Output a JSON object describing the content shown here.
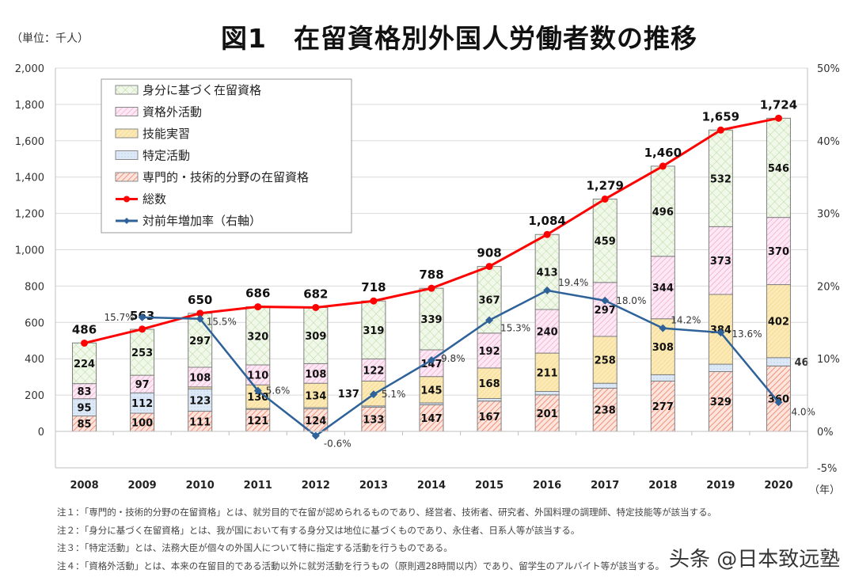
{
  "title": "図1　在留資格別外国人労働者数の推移",
  "unit_label": "（単位：千人）",
  "year_unit": "（年）",
  "notes": [
    "注１：「専門的・技術的分野の在留資格」とは、就労目的で在留が認められるものであり、経営者、技術者、研究者、外国料理の調理師、特定技能等が該当する。",
    "注２：「身分に基づく在留資格」とは、我が国において有する身分又は地位に基づくものであり、永住者、日系人等が該当する。",
    "注３：「特定活動」とは、法務大臣が個々の外国人について特に指定する活動を行うものである。",
    "注４：「資格外活動」とは、本来の在留目的である活動以外に就労活動を行うもの（原則週28時間以内）であり、留学生のアルバイト等が該当する。"
  ],
  "watermark": "头条 @日本致远塾",
  "chart_data": {
    "type": "bar",
    "stacked": true,
    "title": "図1　在留資格別外国人労働者数の推移",
    "ylabel": "（単位：千人）",
    "xlabel": "（年）",
    "categories": [
      "2008",
      "2009",
      "2010",
      "2011",
      "2012",
      "2013",
      "2014",
      "2015",
      "2016",
      "2017",
      "2018",
      "2019",
      "2020"
    ],
    "ylim": [
      0,
      2000
    ],
    "yticks": [
      "0",
      "200",
      "400",
      "600",
      "800",
      "1,000",
      "1,200",
      "1,400",
      "1,600",
      "1,800",
      "2,000"
    ],
    "y2lim": [
      -5,
      50
    ],
    "y2ticks": [
      "-5%",
      "0%",
      "10%",
      "20%",
      "30%",
      "40%",
      "50%"
    ],
    "grid": true,
    "legend_position": "top-left",
    "series": [
      {
        "name": "専門的・技術的分野の在留資格",
        "color": "#f4a28c",
        "values": [
          85,
          100,
          111,
          121,
          124,
          133,
          147,
          167,
          201,
          238,
          277,
          329,
          360
        ]
      },
      {
        "name": "特定活動",
        "color": "#bcd6ef",
        "values": [
          95,
          112,
          123,
          5,
          7,
          7,
          10,
          14,
          19,
          27,
          35,
          41,
          46
        ]
      },
      {
        "name": "技能実習",
        "color": "#f7d77a",
        "values": [
          0,
          0,
          11,
          130,
          134,
          137,
          145,
          168,
          211,
          258,
          308,
          384,
          402
        ]
      },
      {
        "name": "資格外活動",
        "color": "#f1a6d4",
        "values": [
          83,
          97,
          108,
          110,
          108,
          122,
          147,
          192,
          240,
          297,
          344,
          373,
          370
        ]
      },
      {
        "name": "身分に基づく在留資格",
        "color": "#a9d08e",
        "values": [
          224,
          253,
          297,
          320,
          309,
          319,
          339,
          367,
          413,
          459,
          496,
          532,
          546
        ]
      }
    ],
    "lines": [
      {
        "name": "総数",
        "type": "line",
        "axis": "left",
        "color": "#ff0000",
        "values": [
          486,
          563,
          650,
          686,
          682,
          718,
          788,
          908,
          1084,
          1279,
          1460,
          1659,
          1724
        ],
        "labels": [
          "486",
          "563",
          "650",
          "686",
          "682",
          "718",
          "788",
          "908",
          "1,084",
          "1,279",
          "1,460",
          "1,659",
          "1,724"
        ]
      },
      {
        "name": "対前年増加率（右軸）",
        "type": "line",
        "axis": "right",
        "color": "#2e6298",
        "values": [
          null,
          15.7,
          15.5,
          5.6,
          -0.6,
          5.1,
          9.8,
          15.3,
          19.4,
          18.0,
          14.2,
          13.6,
          4.0
        ],
        "labels": [
          null,
          "15.7%",
          "15.5%",
          "5.6%",
          "-0.6%",
          "5.1%",
          "9.8%",
          "15.3%",
          "19.4%",
          "18.0%",
          "14.2%",
          "13.6%",
          "4.0%"
        ]
      }
    ]
  }
}
